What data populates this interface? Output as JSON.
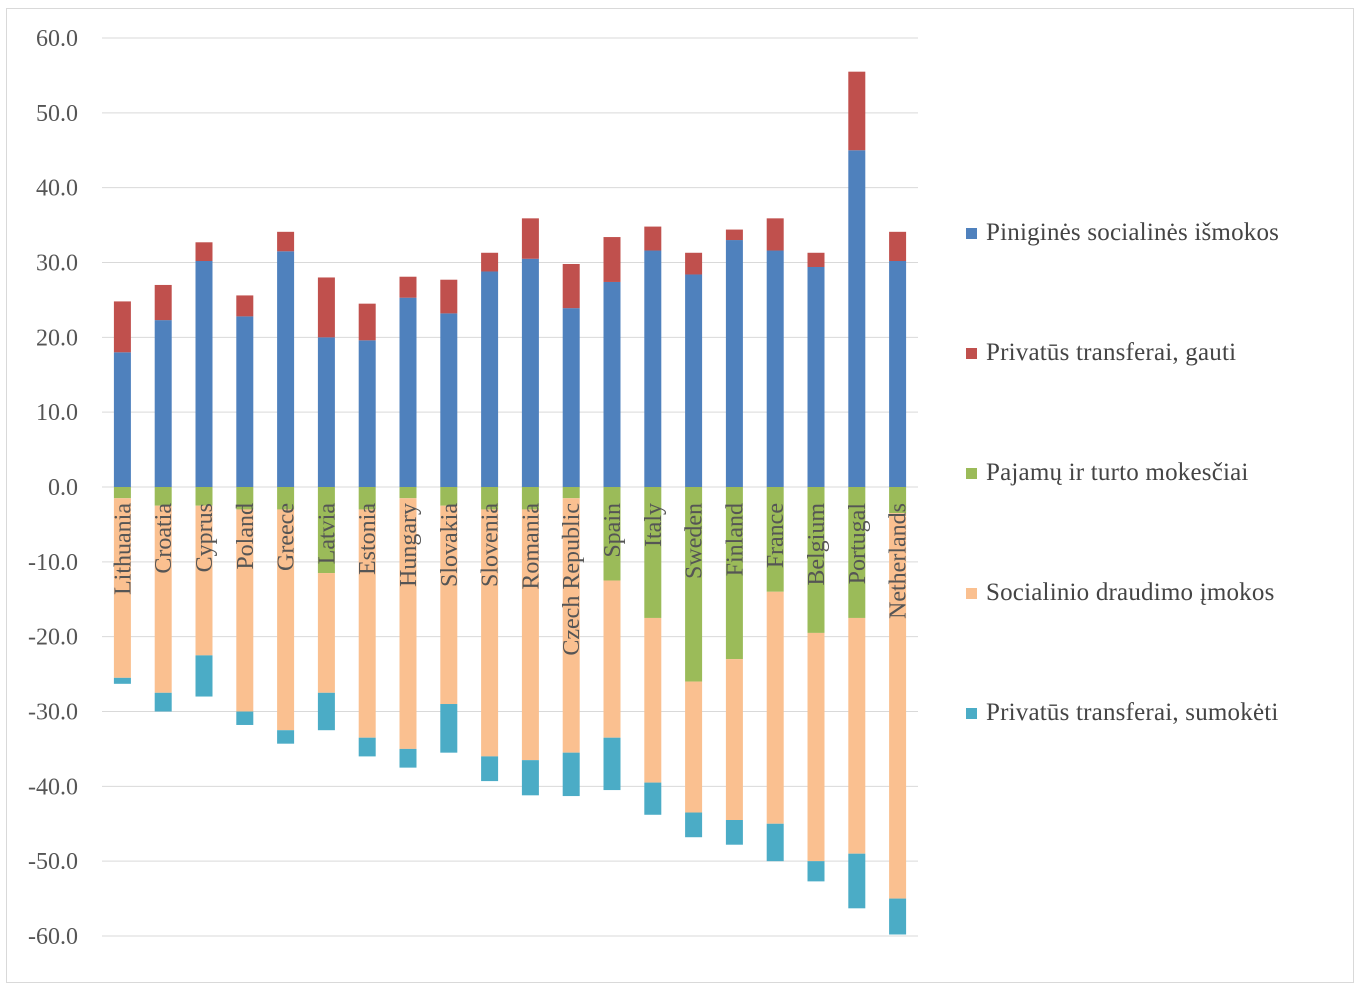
{
  "chart_data": {
    "type": "bar",
    "stacked": true,
    "categories": [
      "Lithuania",
      "Croatia",
      "Cyprus",
      "Poland",
      "Greece",
      "Latvia",
      "Estonia",
      "Hungary",
      "Slovakia",
      "Slovenia",
      "Romania",
      "Czech Republic",
      "Spain",
      "Italy",
      "Sweden",
      "Finland",
      "France",
      "Belgium",
      "Portugal",
      "Netherlands"
    ],
    "y_tick_labels": [
      "60.0",
      "50.0",
      "40.0",
      "30.0",
      "20.0",
      "10.0",
      "0.0",
      "-10.0",
      "-20.0",
      "-30.0",
      "-40.0",
      "-50.0",
      "-60.0"
    ],
    "ylim": [
      -60,
      60
    ],
    "grid": true,
    "legend_position": "right",
    "series": [
      {
        "name": "Piniginės socialinės išmokos",
        "color": "#4f81bd",
        "values": [
          18.0,
          22.3,
          30.2,
          22.8,
          31.5,
          20.0,
          19.6,
          25.3,
          23.2,
          28.8,
          30.5,
          23.9,
          27.4,
          31.6,
          28.4,
          33.0,
          31.6,
          29.4,
          45.0,
          30.2
        ]
      },
      {
        "name": "Privatūs transferai, gauti",
        "color": "#c0504d",
        "values": [
          6.8,
          4.7,
          2.5,
          2.8,
          2.6,
          8.0,
          4.9,
          2.8,
          4.5,
          2.5,
          5.4,
          5.9,
          6.0,
          3.2,
          2.9,
          1.4,
          4.3,
          1.9,
          10.5,
          3.9
        ]
      },
      {
        "name": "Pajamų ir turto mokesčiai",
        "color": "#9bbb59",
        "values": [
          -1.5,
          -2.5,
          -2.5,
          -3.0,
          -3.0,
          -11.5,
          -3.0,
          -1.5,
          -2.5,
          -3.0,
          -3.0,
          -1.5,
          -12.5,
          -17.5,
          -26.0,
          -23.0,
          -14.0,
          -19.5,
          -17.5,
          -3.5
        ]
      },
      {
        "name": "Socialinio draudimo įmokos",
        "color": "#fac090",
        "values": [
          -24.0,
          -25.0,
          -20.0,
          -27.0,
          -29.5,
          -16.0,
          -30.5,
          -33.5,
          -26.5,
          -33.0,
          -33.5,
          -34.0,
          -21.0,
          -22.0,
          -17.5,
          -21.5,
          -31.0,
          -30.5,
          -31.5,
          -51.5
        ]
      },
      {
        "name": "Privatūs transferai, sumokėti",
        "color": "#4bacc6",
        "values": [
          -0.8,
          -2.5,
          -5.5,
          -1.8,
          -1.8,
          -5.0,
          -2.5,
          -2.5,
          -6.5,
          -3.3,
          -4.7,
          -5.8,
          -7.0,
          -4.3,
          -3.3,
          -3.3,
          -5.0,
          -2.7,
          -7.3,
          -4.8
        ]
      }
    ]
  }
}
